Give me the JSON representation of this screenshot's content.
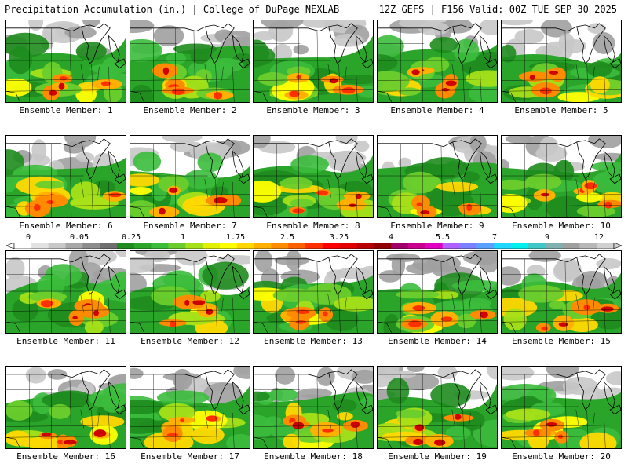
{
  "header": {
    "title": "Precipitation Accumulation (in.) | College of DuPage NEXLAB",
    "run_info": "12Z GEFS | F156 Valid: 00Z TUE SEP 30 2025"
  },
  "colorbar": {
    "labels": [
      "0",
      "0.05",
      "0.25",
      "1",
      "1.75",
      "2.5",
      "3.25",
      "4",
      "5.5",
      "7",
      "9",
      "12"
    ],
    "colors": [
      "#ffffff",
      "#e2e2e2",
      "#c8c8c8",
      "#a8a8a8",
      "#8c8c8c",
      "#6f6f6f",
      "#1e8c1e",
      "#2aa52a",
      "#3cbd3c",
      "#6acd2c",
      "#a6e018",
      "#e0f000",
      "#ffff00",
      "#ffd800",
      "#ffb000",
      "#ff8c00",
      "#ff6000",
      "#ff3000",
      "#ff0000",
      "#e00000",
      "#b80000",
      "#900000",
      "#a0006a",
      "#c8008c",
      "#e000c0",
      "#b060ff",
      "#7a80ff",
      "#5aa0ff",
      "#20d8ff",
      "#00f0f0",
      "#40c8c8",
      "#80b0b0",
      "#a0a0a0",
      "#b8b8b8",
      "#d0d0d0"
    ]
  },
  "members": [
    {
      "label": "Ensemble Member: 1"
    },
    {
      "label": "Ensemble Member: 2"
    },
    {
      "label": "Ensemble Member: 3"
    },
    {
      "label": "Ensemble Member: 4"
    },
    {
      "label": "Ensemble Member: 5"
    },
    {
      "label": "Ensemble Member: 6"
    },
    {
      "label": "Ensemble Member: 7"
    },
    {
      "label": "Ensemble Member: 8"
    },
    {
      "label": "Ensemble Member: 9"
    },
    {
      "label": "Ensemble Member: 10"
    },
    {
      "label": "Ensemble Member: 11"
    },
    {
      "label": "Ensemble Member: 12"
    },
    {
      "label": "Ensemble Member: 13"
    },
    {
      "label": "Ensemble Member: 14"
    },
    {
      "label": "Ensemble Member: 15"
    },
    {
      "label": "Ensemble Member: 16"
    },
    {
      "label": "Ensemble Member: 17"
    },
    {
      "label": "Ensemble Member: 18"
    },
    {
      "label": "Ensemble Member: 19"
    },
    {
      "label": "Ensemble Member: 20"
    }
  ]
}
